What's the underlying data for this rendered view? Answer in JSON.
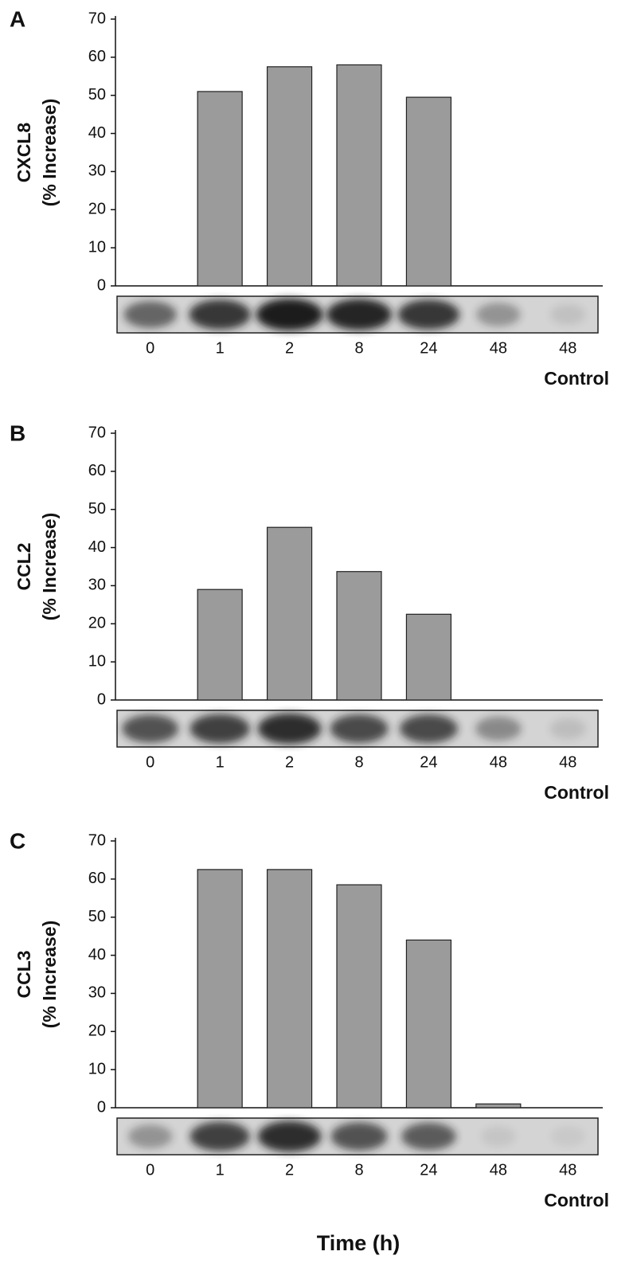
{
  "chart_data": [
    {
      "type": "bar",
      "panel_label": "A",
      "ylabel": [
        "CXCL8",
        "(% Increase)"
      ],
      "categories": [
        "0",
        "1",
        "2",
        "8",
        "24",
        "48",
        "48"
      ],
      "category_note": "Control",
      "values": [
        0,
        51,
        57.5,
        58,
        49.5,
        0,
        0
      ],
      "color": "#9b9b9b",
      "ylim": [
        0,
        70
      ],
      "yticks": [
        0,
        10,
        20,
        30,
        40,
        50,
        60,
        70
      ]
    },
    {
      "type": "bar",
      "panel_label": "B",
      "ylabel": [
        "CCL2",
        "(% Increase)"
      ],
      "categories": [
        "0",
        "1",
        "2",
        "8",
        "24",
        "48",
        "48"
      ],
      "category_note": "Control",
      "values": [
        0,
        29,
        45.3,
        33.7,
        22.5,
        0,
        0
      ],
      "color": "#9b9b9b",
      "ylim": [
        0,
        70
      ],
      "yticks": [
        0,
        10,
        20,
        30,
        40,
        50,
        60,
        70
      ]
    },
    {
      "type": "bar",
      "panel_label": "C",
      "ylabel": [
        "CCL3",
        "(% Increase)"
      ],
      "categories": [
        "0",
        "1",
        "2",
        "8",
        "24",
        "48",
        "48"
      ],
      "category_note": "Control",
      "values": [
        0,
        62.5,
        62.5,
        58.5,
        44,
        1,
        0
      ],
      "color": "#9b9b9b",
      "ylim": [
        0,
        70
      ],
      "yticks": [
        0,
        10,
        20,
        30,
        40,
        50,
        60,
        70
      ]
    }
  ],
  "xlabel": "Time (h)"
}
